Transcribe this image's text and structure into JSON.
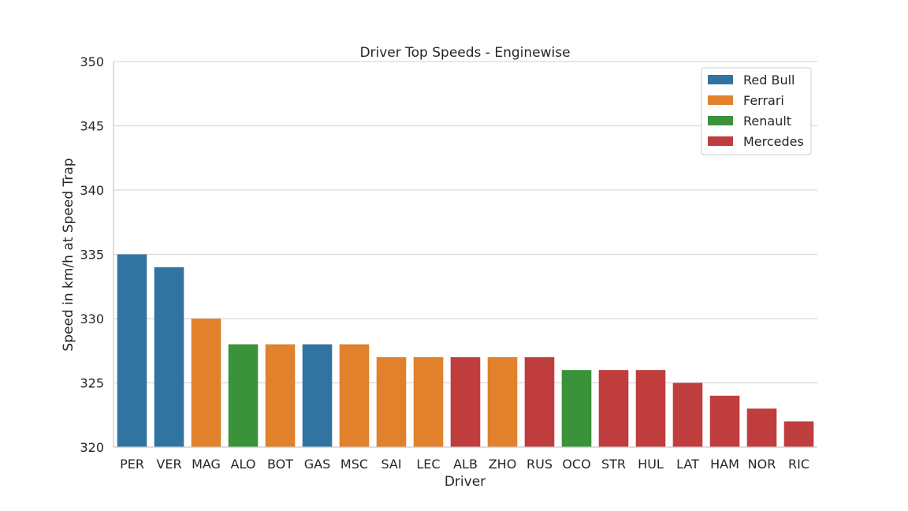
{
  "chart_data": {
    "type": "bar",
    "title": "Driver Top Speeds - Enginewise",
    "xlabel": "Driver",
    "ylabel": "Speed in km/h at Speed Trap",
    "ylim": [
      320,
      350
    ],
    "yticks": [
      320,
      325,
      330,
      335,
      340,
      345,
      350
    ],
    "grid": "horizontal",
    "legend_placement": "top-right",
    "categories": [
      "PER",
      "VER",
      "MAG",
      "ALO",
      "BOT",
      "GAS",
      "MSC",
      "SAI",
      "LEC",
      "ALB",
      "ZHO",
      "RUS",
      "OCO",
      "STR",
      "HUL",
      "LAT",
      "HAM",
      "NOR",
      "RIC"
    ],
    "values": [
      335,
      334,
      330,
      328,
      328,
      328,
      328,
      327,
      327,
      327,
      327,
      327,
      326,
      326,
      326,
      325,
      324,
      323,
      322
    ],
    "engines": [
      "Red Bull",
      "Red Bull",
      "Ferrari",
      "Renault",
      "Ferrari",
      "Red Bull",
      "Ferrari",
      "Ferrari",
      "Ferrari",
      "Mercedes",
      "Ferrari",
      "Mercedes",
      "Renault",
      "Mercedes",
      "Mercedes",
      "Mercedes",
      "Mercedes",
      "Mercedes",
      "Mercedes"
    ],
    "legend": [
      {
        "name": "Red Bull",
        "color": "#3274a1"
      },
      {
        "name": "Ferrari",
        "color": "#e1812c"
      },
      {
        "name": "Renault",
        "color": "#3a923a"
      },
      {
        "name": "Mercedes",
        "color": "#c03d3e"
      }
    ]
  }
}
